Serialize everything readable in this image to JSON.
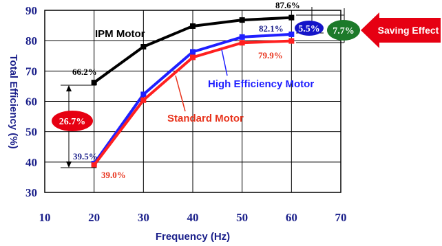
{
  "chart_data": {
    "type": "line",
    "xlabel": "Frequency (Hz)",
    "ylabel": "Total Efficiency (%)",
    "xlim": [
      10,
      70
    ],
    "ylim": [
      30,
      90
    ],
    "x_ticks": [
      "10",
      "20",
      "30",
      "40",
      "50",
      "60",
      "70"
    ],
    "y_ticks": [
      "30",
      "40",
      "50",
      "60",
      "70",
      "80",
      "90"
    ],
    "grid": true,
    "x": [
      20,
      30,
      40,
      50,
      60
    ],
    "series": [
      {
        "name": "IPM Motor",
        "color": "#000000",
        "values": [
          66.2,
          78,
          84.8,
          86.8,
          87.6
        ]
      },
      {
        "name": "High Efficiency Motor",
        "color": "#1f1fff",
        "values": [
          39.5,
          62.3,
          76.3,
          81.2,
          82.1
        ]
      },
      {
        "name": "Standard Motor",
        "color": "#ff2020",
        "values": [
          39.0,
          60.4,
          74.5,
          79.3,
          79.9
        ]
      }
    ],
    "data_labels": [
      {
        "text": "66.2%",
        "color": "#000000"
      },
      {
        "text": "87.6%",
        "color": "#000000"
      },
      {
        "text": "82.1%",
        "color": "#1a1f8a"
      },
      {
        "text": "79.9%",
        "color": "#e8331c"
      },
      {
        "text": "39.5%",
        "color": "#1a1f8a"
      },
      {
        "text": "39.0%",
        "color": "#e8331c"
      }
    ],
    "annotations": {
      "gap_total": "26.7%",
      "gap_ipm_vs_high": "5.5%",
      "gap_ipm_vs_standard": "7.7%",
      "saving_effect": "Saving Effect"
    }
  },
  "colors": {
    "axis_text": "#1a1f8a",
    "gap_total_fill": "#e60012",
    "gap_high_fill": "#1414c8",
    "gap_standard_fill": "#1d7a2a",
    "saving_arrow": "#e60012"
  }
}
